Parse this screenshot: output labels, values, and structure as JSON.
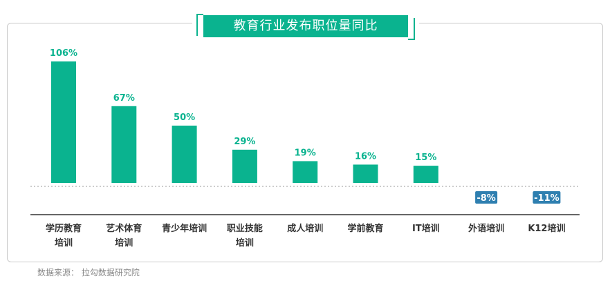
{
  "title": "教育行业发布职位量同比",
  "source": "数据来源：  拉勾数据研究院",
  "colors": {
    "positive": "#0ab38f",
    "negative": "#2e7fb0",
    "frame": "#c9c9c9"
  },
  "chart_data": {
    "type": "bar",
    "title": "教育行业发布职位量同比",
    "unit": "%",
    "categories": [
      "学历教育培训",
      "艺术体育培训",
      "青少年培训",
      "职业技能培训",
      "成人培训",
      "学前教育",
      "IT培训",
      "外语培训",
      "K12培训"
    ],
    "category_lines": [
      [
        "学历教育",
        "培训"
      ],
      [
        "艺术体育",
        "培训"
      ],
      [
        "青少年培训"
      ],
      [
        "职业技能",
        "培训"
      ],
      [
        "成人培训"
      ],
      [
        "学前教育"
      ],
      [
        "IT培训"
      ],
      [
        "外语培训"
      ],
      [
        "K12培训"
      ]
    ],
    "values": [
      106,
      67,
      50,
      29,
      19,
      16,
      15,
      -8,
      -11
    ],
    "labels": [
      "106%",
      "67%",
      "50%",
      "29%",
      "19%",
      "16%",
      "15%",
      "-8%",
      "-11%"
    ],
    "baseline": 0,
    "grid": false,
    "legend": "none"
  }
}
